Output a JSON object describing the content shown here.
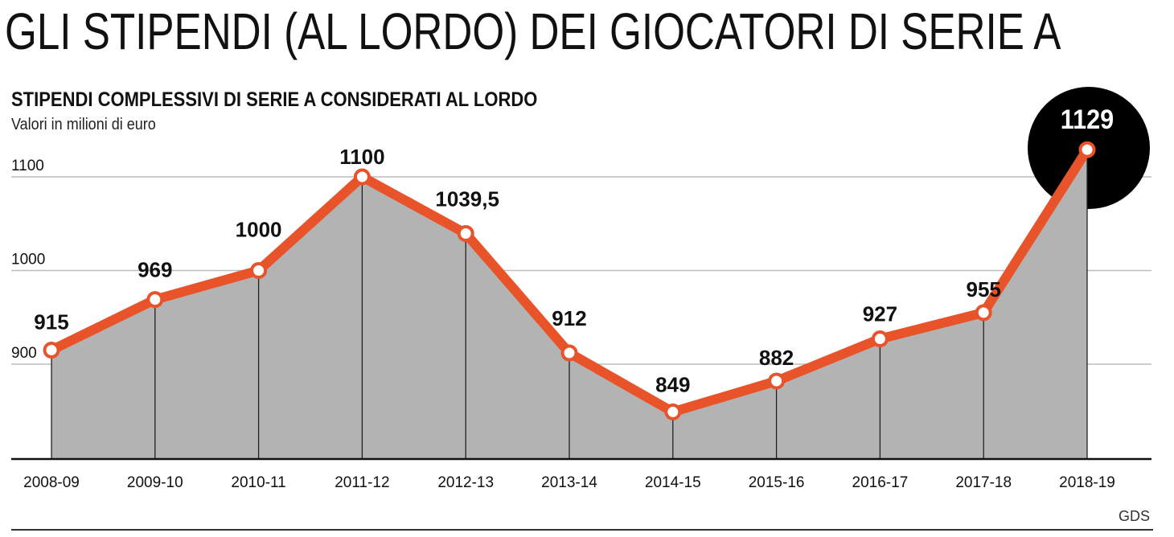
{
  "title": "GLI STIPENDI (AL LORDO) DEI GIOCATORI DI SERIE A",
  "chart_data": {
    "type": "area",
    "title": "STIPENDI COMPLESSIVI DI SERIE A CONSIDERATI AL LORDO",
    "subtitle": "Valori in milioni di euro",
    "categories": [
      "2008-09",
      "2009-10",
      "2010-11",
      "2011-12",
      "2012-13",
      "2013-14",
      "2014-15",
      "2015-16",
      "2016-17",
      "2017-18",
      "2018-19"
    ],
    "values": [
      915,
      969,
      1000,
      1100,
      1039.5,
      912,
      849,
      882,
      927,
      955,
      1129
    ],
    "value_labels": [
      "915",
      "969",
      "1000",
      "1100",
      "1039,5",
      "912",
      "849",
      "882",
      "927",
      "955",
      "1129"
    ],
    "yticks": [
      900,
      1000,
      1100
    ],
    "ytick_labels": [
      "900",
      "1000",
      "1100"
    ],
    "grid": true,
    "highlight_index": 10,
    "colors": {
      "line": "#e8532a",
      "area": "#b3b3b3",
      "highlight": "#000000",
      "grid": "#bdbdbd"
    }
  },
  "source": "GDS"
}
